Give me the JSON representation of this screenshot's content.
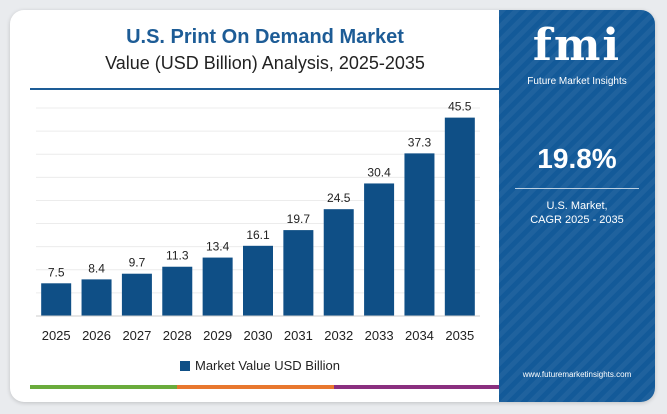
{
  "chart_data": {
    "type": "bar",
    "title": "U.S. Print On Demand Market",
    "subtitle": "Value (USD Billion) Analysis, 2025-2035",
    "categories": [
      "2025",
      "2026",
      "2027",
      "2028",
      "2029",
      "2030",
      "2031",
      "2032",
      "2033",
      "2034",
      "2035"
    ],
    "values": [
      7.5,
      8.4,
      9.7,
      11.3,
      13.4,
      16.1,
      19.7,
      24.5,
      30.4,
      37.3,
      45.5
    ],
    "value_labels": [
      "7.5",
      "8.4",
      "9.7",
      "11.3",
      "13.4",
      "16.1",
      "19.7",
      "24.5",
      "30.4",
      "37.3",
      "45.5"
    ],
    "series_name": "Market Value USD Billion",
    "ylim": [
      0,
      50
    ],
    "grid": true,
    "legend_position": "bottom-center"
  },
  "colors": {
    "bar": "#0f4f86",
    "title": "#1d5c96",
    "panel": "#135a99",
    "strip": [
      "#6aab3c",
      "#e8772e",
      "#8a2f7f"
    ]
  },
  "panel": {
    "logo_text": "fmi",
    "logo_sub": "Future Market Insights",
    "cagr_value": "19.8%",
    "cagr_label_line1": "U.S. Market,",
    "cagr_label_line2": "CAGR 2025 - 2035",
    "url": "www.futuremarketinsights.com"
  }
}
